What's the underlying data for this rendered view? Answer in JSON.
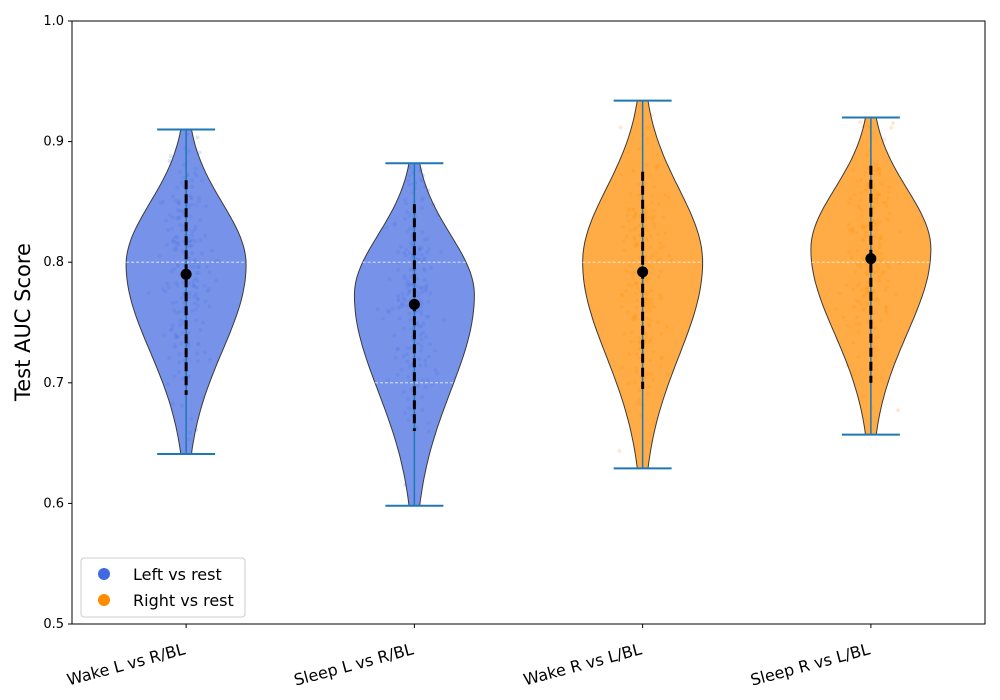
{
  "chart_data": {
    "type": "violin",
    "title": "",
    "xlabel": "",
    "ylabel": "Test AUC Score",
    "ylim": [
      0.5,
      1.0
    ],
    "yticks": [
      "0.5",
      "0.6",
      "0.7",
      "0.8",
      "0.9",
      "1.0"
    ],
    "grid": false,
    "legend_position": "lower-left",
    "categories": [
      "Wake L vs R/BL",
      "Sleep L vs R/BL",
      "Wake R vs L/BL",
      "Sleep R vs L/BL"
    ],
    "series": [
      {
        "name": "Left vs rest",
        "color": "#4169e1"
      },
      {
        "name": "Right vs rest",
        "color": "#ff8c00"
      }
    ],
    "violins": [
      {
        "category": "Wake L vs R/BL",
        "group": "Left vs rest",
        "min": 0.641,
        "max": 0.91,
        "median": 0.79,
        "q1": 0.69,
        "q3": 0.868
      },
      {
        "category": "Sleep L vs R/BL",
        "group": "Left vs rest",
        "min": 0.598,
        "max": 0.882,
        "median": 0.765,
        "q1": 0.66,
        "q3": 0.848
      },
      {
        "category": "Wake R vs L/BL",
        "group": "Right vs rest",
        "min": 0.629,
        "max": 0.934,
        "median": 0.792,
        "q1": 0.695,
        "q3": 0.875
      },
      {
        "category": "Sleep R vs L/BL",
        "group": "Right vs rest",
        "min": 0.657,
        "max": 0.92,
        "median": 0.803,
        "q1": 0.7,
        "q3": 0.88
      }
    ]
  }
}
